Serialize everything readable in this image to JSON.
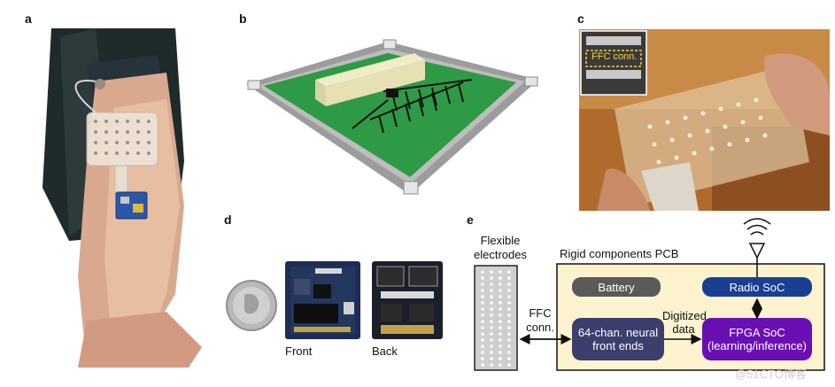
{
  "panels": {
    "a": "a",
    "b": "b",
    "c": "c",
    "d": "d",
    "e": "e"
  },
  "panel_c": {
    "connector_label": "FFC conn."
  },
  "panel_d": {
    "front_label": "Front",
    "back_label": "Back"
  },
  "panel_e": {
    "flexible_label": "Flexible electrodes",
    "ffc_label": "FFC conn.",
    "pcb_label": "Rigid components PCB",
    "battery": "Battery",
    "radio": "Radio SoC",
    "neural": "64-chan. neural front ends",
    "fpga": "FPGA SoC (learning/inference)",
    "digitized": "Digitized data"
  },
  "colors": {
    "pcb_fill": "#fdf3cf",
    "battery": "#5a5a5a",
    "radio": "#1a3f92",
    "neural": "#3c3e6e",
    "fpga": "#6a0fb3"
  },
  "watermark": "@51CTO博客"
}
